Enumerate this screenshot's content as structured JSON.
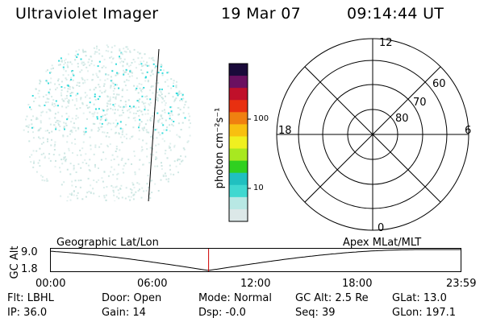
{
  "header": {
    "title": "Ultraviolet Imager",
    "date": "19 Mar 07",
    "time": "09:14:44 UT"
  },
  "colorbar": {
    "unit_label": "photon cm⁻²s⁻¹",
    "ticks": [
      "100",
      "10"
    ],
    "colors": [
      "#1a0a3a",
      "#6a1060",
      "#c0102a",
      "#e83010",
      "#f08010",
      "#f8c010",
      "#f0f020",
      "#a8e820",
      "#30d020",
      "#20c0c0",
      "#40d8d0",
      "#b8e8e4",
      "#dce8e8"
    ]
  },
  "polar": {
    "mlt_labels": {
      "top": "12",
      "left": "18",
      "right": "6",
      "bottom": "0"
    },
    "lat_labels": [
      "60",
      "70",
      "80"
    ]
  },
  "timeline": {
    "ylabel": "GC Alt",
    "yticks": [
      "9.0",
      "1.8"
    ],
    "left_title": "Geographic Lat/Lon",
    "right_title": "Apex  MLat/MLT",
    "xticks": [
      "00:00",
      "06:00",
      "12:00",
      "18:00",
      "23:59"
    ],
    "marker_hours": 9.246,
    "marker_color": "#d00000"
  },
  "footer": {
    "row1": {
      "filter": "Flt: LBHL",
      "door": "Door: Open",
      "mode": "Mode: Normal",
      "gcalt": "GC Alt: 2.5 Re",
      "glat": "GLat:  13.0"
    },
    "row2": {
      "ip": "IP: 36.0",
      "gain": "Gain: 14",
      "dsp": "Dsp:   -0.0",
      "seq": "Seq: 39",
      "glon": "GLon: 197.1"
    }
  },
  "colors": {
    "image_cyan": "#20d8d8",
    "image_pale": "#c8e4e0"
  }
}
